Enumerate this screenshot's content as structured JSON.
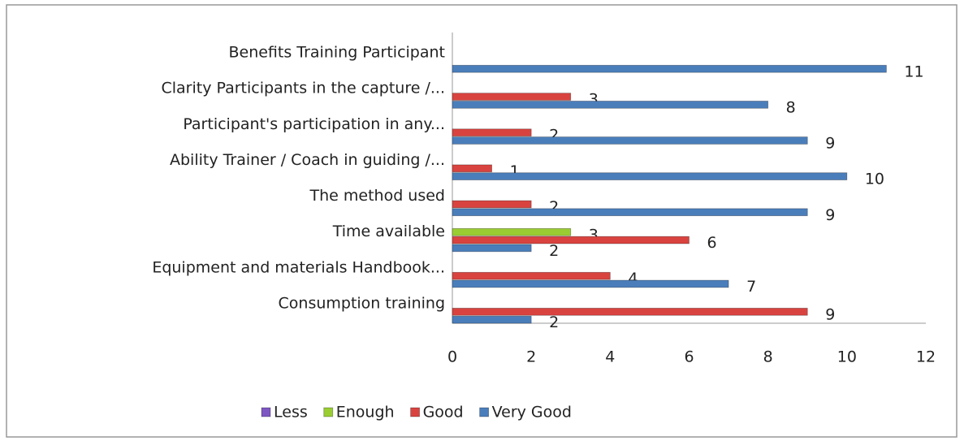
{
  "chart_data": {
    "type": "bar",
    "orientation": "horizontal",
    "categories": [
      "Benefits Training Participant",
      "Clarity Participants in the capture /...",
      "Participant's participation in any...",
      "Ability Trainer / Coach in guiding /...",
      "The method used",
      "Time available",
      "Equipment and materials Handbook...",
      "Consumption training"
    ],
    "series": [
      {
        "name": "Less",
        "color": "#7e57c2",
        "values": [
          null,
          null,
          null,
          null,
          null,
          null,
          null,
          null
        ]
      },
      {
        "name": "Enough",
        "color": "#9acd32",
        "values": [
          null,
          null,
          null,
          null,
          null,
          3,
          null,
          null
        ]
      },
      {
        "name": "Good",
        "color": "#d9433f",
        "values": [
          null,
          3,
          2,
          1,
          2,
          6,
          4,
          9
        ]
      },
      {
        "name": "Very Good",
        "color": "#4a7ebb",
        "values": [
          11,
          8,
          9,
          10,
          9,
          2,
          7,
          2
        ]
      }
    ],
    "xlim": [
      0,
      12
    ],
    "xticks": [
      0,
      2,
      4,
      6,
      8,
      10,
      12
    ],
    "legend": "bottom"
  }
}
